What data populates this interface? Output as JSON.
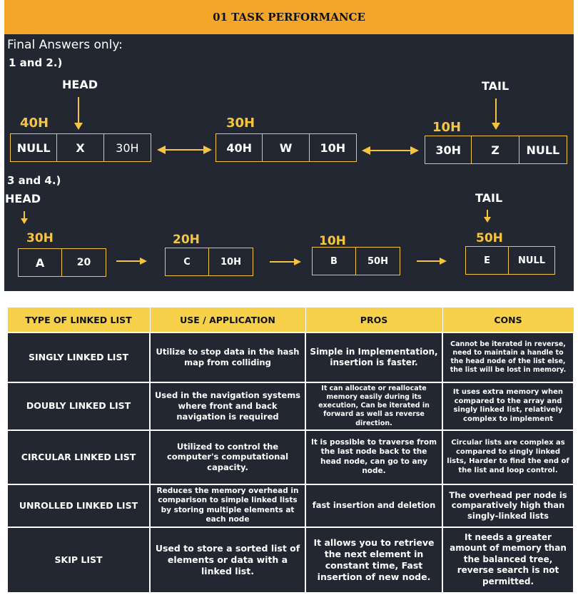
{
  "banner": {
    "title": "01 TASK PERFORMANCE"
  },
  "intro": "Final Answers only:",
  "part1": {
    "label": "1 and 2.)",
    "head": "HEAD",
    "tail": "TAIL",
    "nodes": [
      {
        "addr": "40H",
        "cells": [
          "NULL",
          "X",
          "30H"
        ]
      },
      {
        "addr": "30H",
        "cells": [
          "40H",
          "W",
          "10H"
        ]
      },
      {
        "addr": "10H",
        "cells": [
          "30H",
          "Z",
          "NULL"
        ]
      }
    ]
  },
  "part2": {
    "label": "3 and 4.)",
    "head": "HEAD",
    "tail": "TAIL",
    "nodes": [
      {
        "addr": "30H",
        "cells": [
          "A",
          "20"
        ]
      },
      {
        "addr": "20H",
        "cells": [
          "C",
          "10H"
        ]
      },
      {
        "addr": "10H",
        "cells": [
          "B",
          "50H"
        ]
      },
      {
        "addr": "50H",
        "cells": [
          "E",
          "NULL"
        ]
      }
    ]
  },
  "table": {
    "headers": [
      "TYPE OF LINKED LIST",
      "USE / APPLICATION",
      "PROS",
      "CONS"
    ],
    "rows": [
      {
        "type": "SINGLY LINKED LIST",
        "use": "Utilize to stop data in the hash map from colliding",
        "pros": "Simple in Implementation, insertion is faster.",
        "cons": "Cannot be iterated in reverse, need to maintain a handle to the head node of the list else, the list will be lost in memory."
      },
      {
        "type": "DOUBLY LINKED LIST",
        "use": "Used in the navigation systems where front and back navigation is required",
        "pros": "It can allocate or reallocate memory easily during its execution, Can be iterated in forward as well as reverse direction.",
        "cons": "It uses extra memory when compared to the array and singly linked list, relatively complex to implement"
      },
      {
        "type": "CIRCULAR LINKED LIST",
        "use": "Utilized to control the computer's computational capacity.",
        "pros": "It is possible to traverse from the last node back to the head node, can go to any node.",
        "cons": "Circular lists are complex as compared to singly linked lists, Harder to find the end of the list and loop control."
      },
      {
        "type": "UNROLLED LINKED LIST",
        "use": "Reduces the memory overhead in comparison to simple linked lists by storing multiple elements at each node",
        "pros": "fast insertion and deletion",
        "cons": "The overhead per node is comparatively high than singly-linked lists"
      },
      {
        "type": "SKIP LIST",
        "use": "Used to store a sorted list of elements or data with a linked list.",
        "pros": "It allows you to retrieve the next element in constant time, Fast insertion of new node.",
        "cons": "It needs a greater amount of memory than the balanced tree, reverse search is not permitted."
      }
    ]
  }
}
